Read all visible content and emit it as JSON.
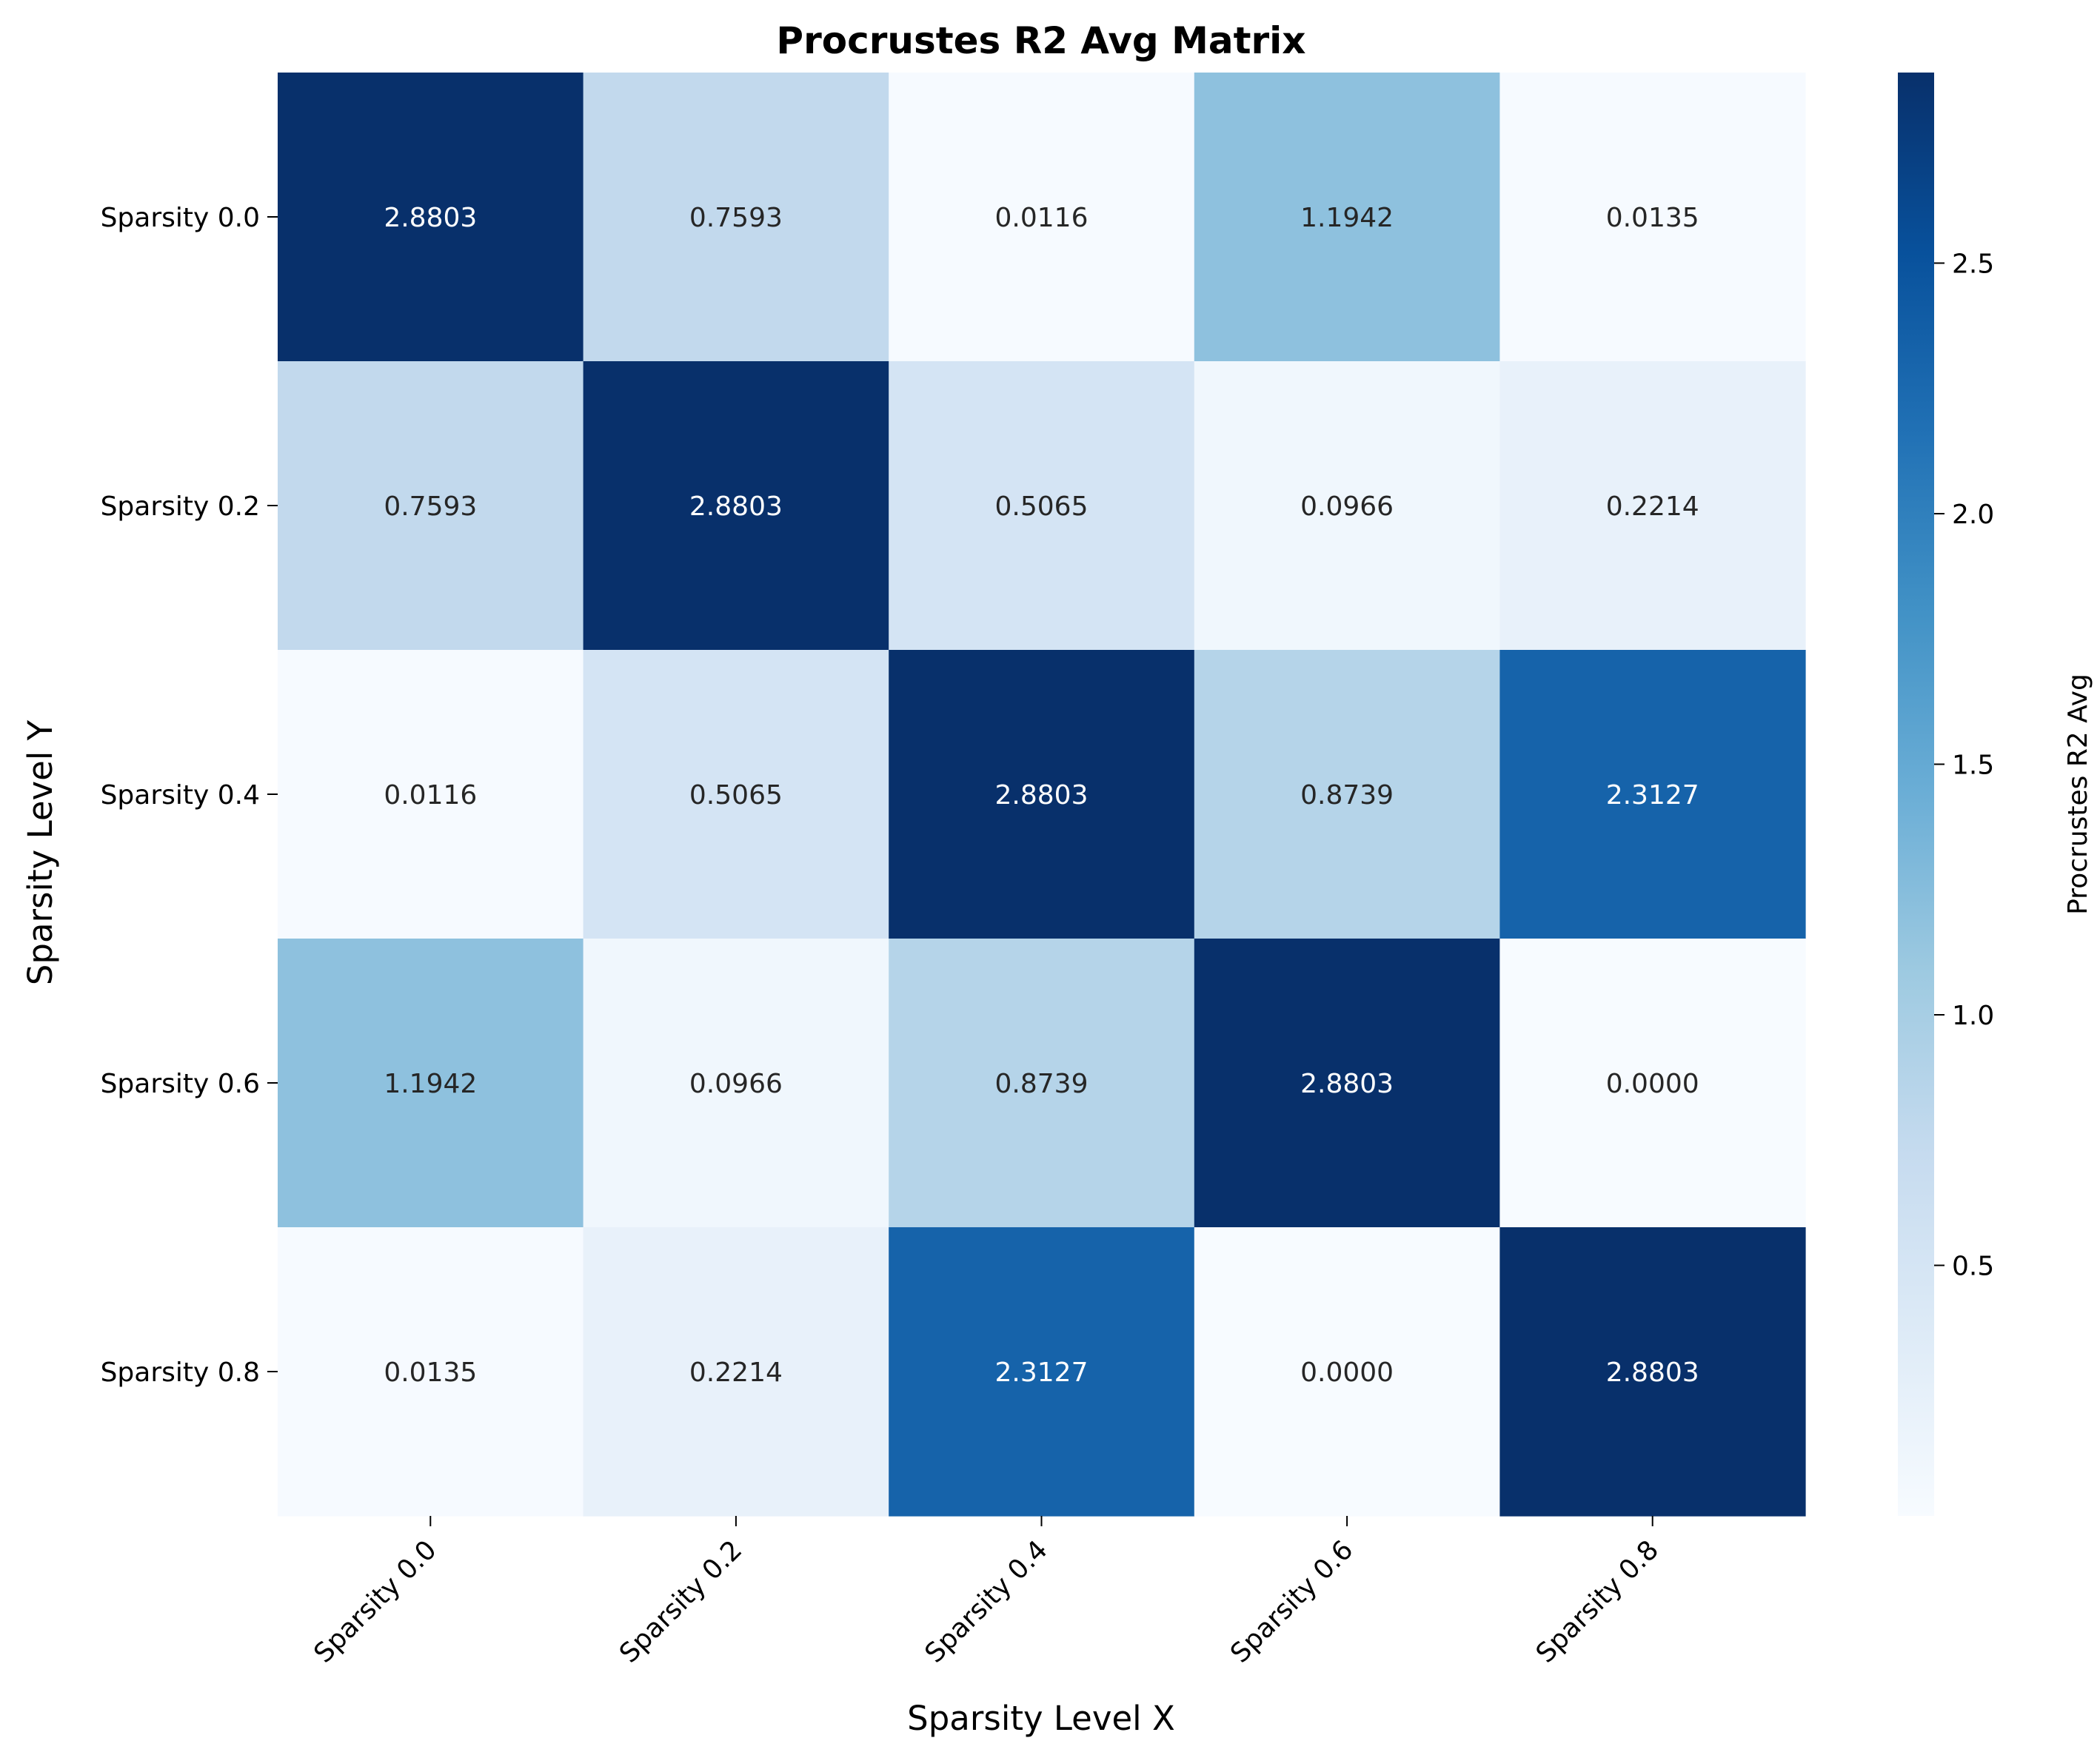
{
  "chart_data": {
    "type": "heatmap",
    "title": "Procrustes R2 Avg Matrix",
    "xlabel": "Sparsity Level X",
    "ylabel": "Sparsity Level Y",
    "x_categories": [
      "Sparsity 0.0",
      "Sparsity 0.2",
      "Sparsity 0.4",
      "Sparsity 0.6",
      "Sparsity 0.8"
    ],
    "y_categories": [
      "Sparsity 0.0",
      "Sparsity 0.2",
      "Sparsity 0.4",
      "Sparsity 0.6",
      "Sparsity 0.8"
    ],
    "values": [
      [
        2.8803,
        0.7593,
        0.0116,
        1.1942,
        0.0135
      ],
      [
        0.7593,
        2.8803,
        0.5065,
        0.0966,
        0.2214
      ],
      [
        0.0116,
        0.5065,
        2.8803,
        0.8739,
        2.3127
      ],
      [
        1.1942,
        0.0966,
        0.8739,
        2.8803,
        0.0
      ],
      [
        0.0135,
        0.2214,
        2.3127,
        0.0,
        2.8803
      ]
    ],
    "value_format_decimals": 4,
    "colormap": "Blues",
    "colorbar": {
      "label": "Procrustes R2 Avg",
      "range": [
        0.0,
        2.8803
      ],
      "ticks": [
        0.5,
        1.0,
        1.5,
        2.0,
        2.5
      ],
      "tick_labels": [
        "0.5",
        "1.0",
        "1.5",
        "2.0",
        "2.5"
      ]
    },
    "colors": {
      "blues_stops": [
        "#f7fbff",
        "#deebf7",
        "#c6dbef",
        "#9ecae1",
        "#6baed6",
        "#4292c6",
        "#2171b5",
        "#08519c",
        "#08306b"
      ],
      "text_light": "#ffffff",
      "text_dark": "#262626",
      "axis": "#000000"
    }
  }
}
